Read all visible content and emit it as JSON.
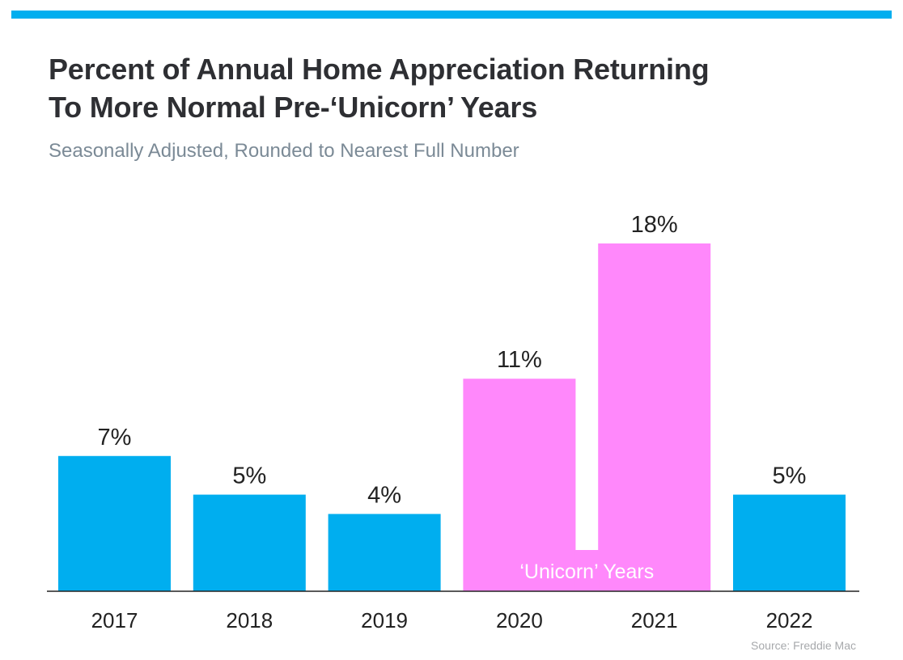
{
  "chart_data": {
    "type": "bar",
    "title": "Percent of Annual Home Appreciation Returning To More Normal Pre-‘Unicorn’ Years",
    "title_lines": [
      "Percent of Annual Home Appreciation Returning",
      "To More Normal Pre-‘Unicorn’ Years"
    ],
    "subtitle": "Seasonally Adjusted, Rounded to Nearest Full Number",
    "categories": [
      "2017",
      "2018",
      "2019",
      "2020",
      "2021",
      "2022"
    ],
    "values": [
      7,
      5,
      4,
      11,
      18,
      5
    ],
    "data_labels": [
      "7%",
      "5%",
      "4%",
      "11%",
      "18%",
      "5%"
    ],
    "highlight_categories": [
      "2020",
      "2021"
    ],
    "highlight_label": "‘Unicorn’ Years",
    "ylim": [
      0,
      18
    ],
    "grid": false,
    "legend": "none",
    "colors": {
      "normal": "#00aeef",
      "highlight": "#ff88fb",
      "axis": "#222222",
      "top_bar": "#00aeef"
    },
    "source": "Source: Freddie Mac"
  }
}
